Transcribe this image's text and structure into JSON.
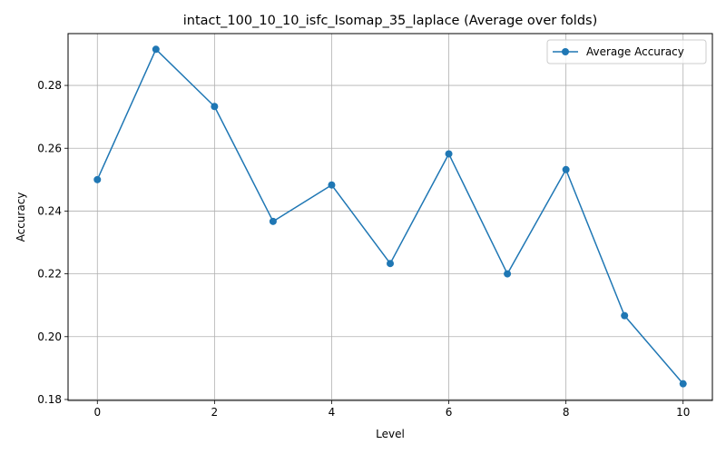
{
  "chart_data": {
    "type": "line",
    "title": "intact_100_10_10_isfc_Isomap_35_laplace (Average over folds)",
    "xlabel": "Level",
    "ylabel": "Accuracy",
    "xlim": [
      -0.5,
      10.5
    ],
    "ylim": [
      0.1797,
      0.2965
    ],
    "xticks": [
      0,
      2,
      4,
      6,
      8,
      10
    ],
    "xtick_labels": [
      "0",
      "2",
      "4",
      "6",
      "8",
      "10"
    ],
    "yticks": [
      0.18,
      0.2,
      0.22,
      0.24,
      0.26,
      0.28
    ],
    "ytick_labels": [
      "0.18",
      "0.20",
      "0.22",
      "0.24",
      "0.26",
      "0.28"
    ],
    "grid": true,
    "legend_position": "top-right",
    "series": [
      {
        "name": "Average Accuracy",
        "color": "#1f77b4",
        "marker": "circle",
        "x": [
          0,
          1,
          2,
          3,
          4,
          5,
          6,
          7,
          8,
          9,
          10
        ],
        "y": [
          0.25,
          0.2915,
          0.2733,
          0.2367,
          0.2483,
          0.2233,
          0.2582,
          0.22,
          0.2532,
          0.2067,
          0.185
        ]
      }
    ]
  }
}
